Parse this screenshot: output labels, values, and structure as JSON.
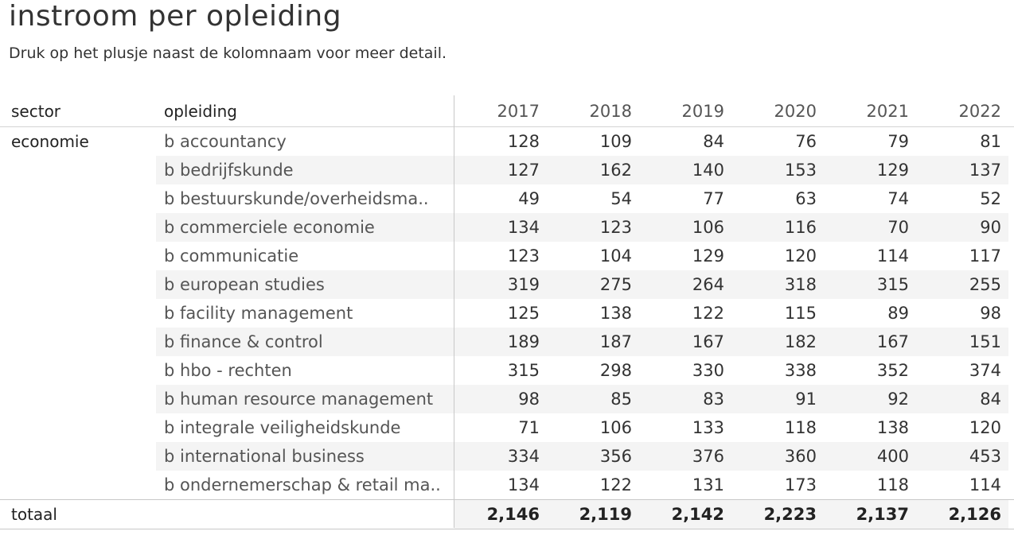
{
  "title": "instroom per opleiding",
  "subtitle": "Druk op het plusje naast de kolomnaam voor meer detail.",
  "table": {
    "headers": {
      "sector": "sector",
      "opleiding": "opleiding",
      "years": [
        "2017",
        "2018",
        "2019",
        "2020",
        "2021",
        "2022"
      ]
    },
    "sector": "economie",
    "rows": [
      {
        "opleiding": "b accountancy",
        "values": [
          "128",
          "109",
          "84",
          "76",
          "79",
          "81"
        ]
      },
      {
        "opleiding": "b bedrijfskunde",
        "values": [
          "127",
          "162",
          "140",
          "153",
          "129",
          "137"
        ]
      },
      {
        "opleiding": "b bestuurskunde/overheidsma..",
        "values": [
          "49",
          "54",
          "77",
          "63",
          "74",
          "52"
        ]
      },
      {
        "opleiding": "b commerciele economie",
        "values": [
          "134",
          "123",
          "106",
          "116",
          "70",
          "90"
        ]
      },
      {
        "opleiding": "b communicatie",
        "values": [
          "123",
          "104",
          "129",
          "120",
          "114",
          "117"
        ]
      },
      {
        "opleiding": "b european studies",
        "values": [
          "319",
          "275",
          "264",
          "318",
          "315",
          "255"
        ]
      },
      {
        "opleiding": "b facility management",
        "values": [
          "125",
          "138",
          "122",
          "115",
          "89",
          "98"
        ]
      },
      {
        "opleiding": "b finance & control",
        "values": [
          "189",
          "187",
          "167",
          "182",
          "167",
          "151"
        ]
      },
      {
        "opleiding": "b hbo - rechten",
        "values": [
          "315",
          "298",
          "330",
          "338",
          "352",
          "374"
        ]
      },
      {
        "opleiding": "b human resource management",
        "values": [
          "98",
          "85",
          "83",
          "91",
          "92",
          "84"
        ]
      },
      {
        "opleiding": "b integrale veiligheidskunde",
        "values": [
          "71",
          "106",
          "133",
          "118",
          "138",
          "120"
        ]
      },
      {
        "opleiding": "b international business",
        "values": [
          "334",
          "356",
          "376",
          "360",
          "400",
          "453"
        ]
      },
      {
        "opleiding": "b ondernemerschap & retail ma..",
        "values": [
          "134",
          "122",
          "131",
          "173",
          "118",
          "114"
        ]
      }
    ],
    "total": {
      "label": "totaal",
      "values": [
        "2,146",
        "2,119",
        "2,142",
        "2,223",
        "2,137",
        "2,126"
      ]
    }
  }
}
